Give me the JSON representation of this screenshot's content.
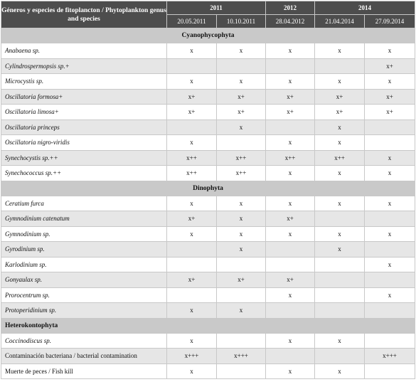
{
  "header": {
    "genus_title": "Géneros y especies de fitoplancton / Phytoplankton genus and species",
    "years": [
      {
        "label": "2011",
        "span": 2
      },
      {
        "label": "2012",
        "span": 1
      },
      {
        "label": "2014",
        "span": 2
      }
    ],
    "dates": [
      "20.05.2011",
      "10.10.2011",
      "28.04.2012",
      "21.04.2014",
      "27.09.2014"
    ]
  },
  "sections": [
    {
      "title": "Cyanophycophyta",
      "align": "center",
      "rows": [
        {
          "name": "Anabaena sp.",
          "italic": true,
          "values": [
            "x",
            "x",
            "x",
            "x",
            "x"
          ]
        },
        {
          "name": "Cylindrospermopsis sp.+",
          "italic": true,
          "values": [
            "",
            "",
            "",
            "",
            "x+"
          ]
        },
        {
          "name": "Microcystis sp.",
          "italic": true,
          "values": [
            "x",
            "x",
            "x",
            "x",
            "x"
          ]
        },
        {
          "name": "Oscillatoria formosa+",
          "italic": true,
          "values": [
            "x+",
            "x+",
            "x+",
            "x+",
            "x+"
          ]
        },
        {
          "name": "Oscillatoria limosa+",
          "italic": true,
          "values": [
            "x+",
            "x+",
            "x+",
            "x+",
            "x+"
          ]
        },
        {
          "name": "Oscillatoria princeps",
          "italic": true,
          "values": [
            "",
            "x",
            "",
            "x",
            ""
          ]
        },
        {
          "name": "Oscillatoria nigro-viridis",
          "italic": true,
          "values": [
            "x",
            "",
            "x",
            "x",
            ""
          ]
        },
        {
          "name": "Synechocystis sp.++",
          "italic": true,
          "values": [
            "x++",
            "x++",
            "x++",
            "x++",
            "x"
          ]
        },
        {
          "name": "Synechococcus sp.++",
          "italic": true,
          "values": [
            "x++",
            "x++",
            "x",
            "x",
            "x"
          ]
        }
      ]
    },
    {
      "title": "Dinophyta",
      "align": "center",
      "rows": [
        {
          "name": "Ceratium furca",
          "italic": true,
          "values": [
            "x",
            "x",
            "x",
            "x",
            "x"
          ]
        },
        {
          "name": "Gymnodinium catenatum",
          "italic": true,
          "values": [
            "x+",
            "x",
            "x+",
            "",
            ""
          ]
        },
        {
          "name": "Gymnodinium sp.",
          "italic": true,
          "values": [
            "x",
            "x",
            "x",
            "x",
            "x"
          ]
        },
        {
          "name": "Gyrodinium sp.",
          "italic": true,
          "values": [
            "",
            "x",
            "",
            "x",
            ""
          ]
        },
        {
          "name": "Karlodinium sp.",
          "italic": true,
          "values": [
            "",
            "",
            "",
            "",
            "x"
          ]
        },
        {
          "name": "Gonyaulax sp.",
          "italic": true,
          "values": [
            "x+",
            "x+",
            "x+",
            "",
            ""
          ]
        },
        {
          "name": "Prorocentrum sp.",
          "italic": true,
          "values": [
            "",
            "",
            "x",
            "",
            "x"
          ]
        },
        {
          "name": "Protoperidinium sp.",
          "italic": true,
          "values": [
            "x",
            "x",
            "",
            "",
            ""
          ]
        }
      ]
    },
    {
      "title": "Heterokontophyta",
      "align": "left",
      "rows": [
        {
          "name": "Coccinodiscus sp.",
          "italic": true,
          "values": [
            "x",
            "",
            "x",
            "x",
            ""
          ]
        },
        {
          "name": "Contaminación bacteriana / bacterial contamination",
          "italic": false,
          "values": [
            "x+++",
            "x+++",
            "",
            "",
            "x+++"
          ]
        },
        {
          "name": "Muerte de peces / Fish kill",
          "italic": false,
          "values": [
            "x",
            "",
            "x",
            "x",
            ""
          ]
        }
      ]
    }
  ]
}
